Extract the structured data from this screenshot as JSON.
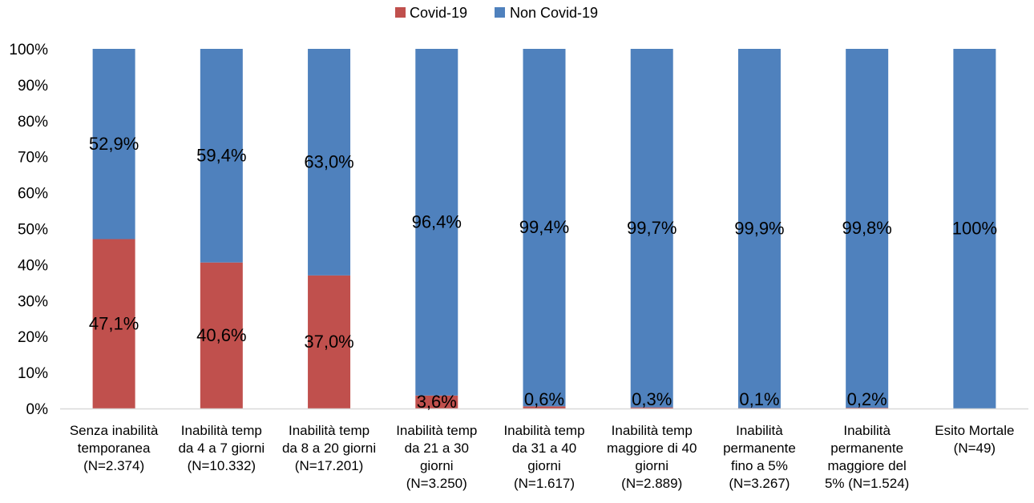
{
  "chart_data": {
    "type": "bar",
    "stacked": true,
    "normalized": true,
    "title": "",
    "xlabel": "",
    "ylabel": "",
    "ylim": [
      0,
      100
    ],
    "yticks": [
      "0%",
      "10%",
      "20%",
      "30%",
      "40%",
      "50%",
      "60%",
      "70%",
      "80%",
      "90%",
      "100%"
    ],
    "grid": false,
    "legend_position": "top",
    "categories": [
      [
        "Senza inabilità",
        "temporanea",
        "(N=2.374)"
      ],
      [
        "Inabilità temp",
        "da 4 a 7 giorni",
        "(N=10.332)"
      ],
      [
        "Inabilità temp",
        "da 8 a 20 giorni",
        "(N=17.201)"
      ],
      [
        "Inabilità temp",
        "da 21 a 30",
        "giorni",
        "(N=3.250)"
      ],
      [
        "Inabilità temp",
        "da 31 a 40",
        "giorni",
        "(N=1.617)"
      ],
      [
        "Inabilità temp",
        "maggiore di 40",
        "giorni",
        "(N=2.889)"
      ],
      [
        "Inabilità",
        "permanente",
        "fino a 5%",
        "(N=3.267)"
      ],
      [
        "Inabilità",
        "permanente",
        "maggiore del",
        "5% (N=1.524)"
      ],
      [
        "Esito Mortale",
        "(N=49)"
      ]
    ],
    "series": [
      {
        "name": "Covid-19",
        "color": "#c0504d",
        "values": [
          47.1,
          40.6,
          37.0,
          3.6,
          0.6,
          0.3,
          0.1,
          0.2,
          0
        ],
        "labels": [
          "47,1%",
          "40,6%",
          "37,0%",
          "3,6%",
          "0,6%",
          "0,3%",
          "0,1%",
          "0,2%",
          ""
        ]
      },
      {
        "name": "Non Covid-19",
        "color": "#4f81bd",
        "values": [
          52.9,
          59.4,
          63.0,
          96.4,
          99.4,
          99.7,
          99.9,
          99.8,
          100
        ],
        "labels": [
          "52,9%",
          "59,4%",
          "63,0%",
          "96,4%",
          "99,4%",
          "99,7%",
          "99,9%",
          "99,8%",
          "100%"
        ]
      }
    ]
  }
}
